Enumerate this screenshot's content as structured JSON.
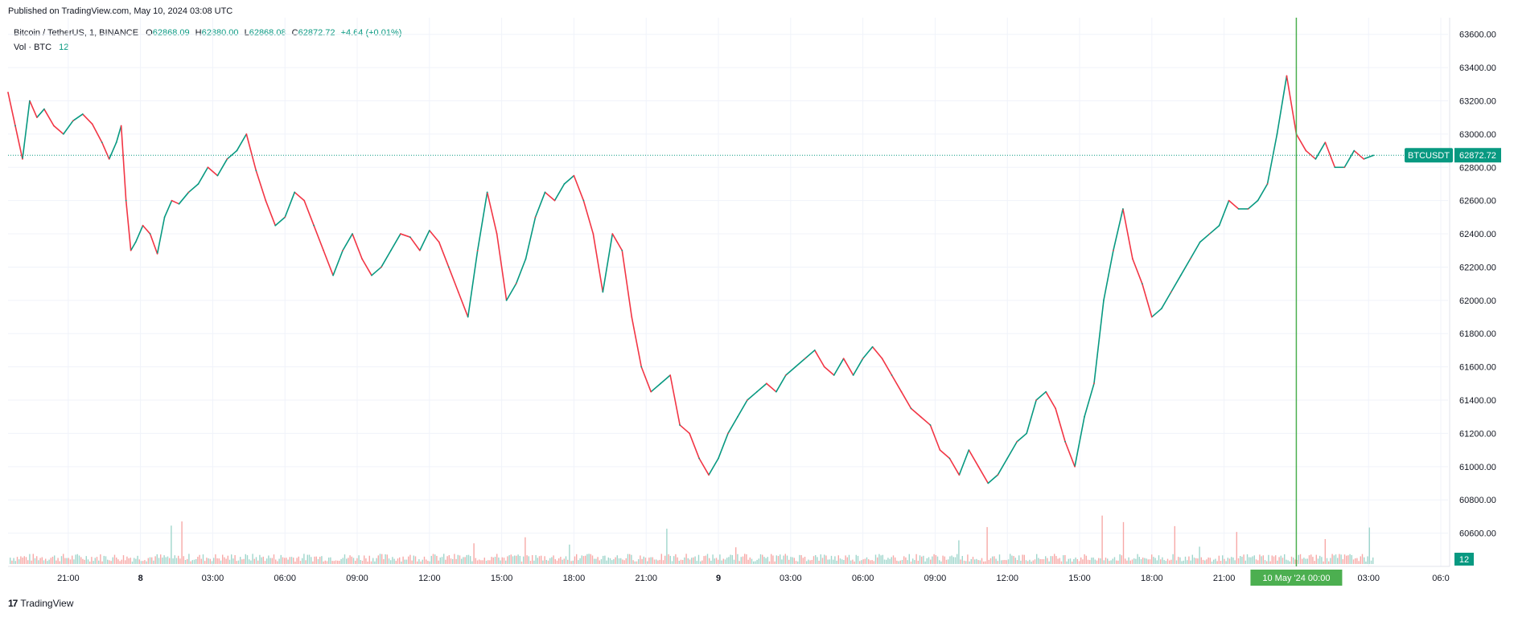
{
  "header": {
    "published": "Published on TradingView.com, May 10, 2024 03:08 UTC"
  },
  "legend": {
    "symbol": "Bitcoin / TetherUS, 1, BINANCE",
    "o_label": "O",
    "o_value": "62868.09",
    "h_label": "H",
    "h_value": "62880.00",
    "l_label": "L",
    "l_value": "62868.08",
    "c_label": "C",
    "c_value": "62872.72",
    "change": "+4.64 (+0.01%)"
  },
  "volume_legend": {
    "label": "Vol · BTC",
    "value": "12"
  },
  "footer": {
    "brand": "TradingView",
    "logo_text": "17"
  },
  "price_badge": {
    "ticker": "BTCUSDT",
    "price": "62872.72"
  },
  "volume_badge": "12",
  "crosshair_label": "10 May '24   00:00",
  "colors": {
    "up": "#089981",
    "down": "#f23645",
    "crosshair": "#4caf50",
    "badge": "#089981",
    "grid": "#f0f3fa"
  },
  "chart_data": {
    "type": "line",
    "title": "Bitcoin / TetherUS, 1, BINANCE",
    "ylim": [
      60400,
      63700
    ],
    "y_ticks": [
      63600,
      63400,
      63200,
      63000,
      62800,
      62600,
      62400,
      62200,
      62000,
      61800,
      61600,
      61400,
      61200,
      61000,
      60800,
      60600
    ],
    "y_tick_labels": [
      "63600.00",
      "63400.00",
      "63200.00",
      "63000.00",
      "62800.00",
      "62600.00",
      "62400.00",
      "62200.00",
      "62000.00",
      "61800.00",
      "61600.00",
      "61400.00",
      "61200.00",
      "61000.00",
      "60800.00",
      "60600.00"
    ],
    "x_tick_labels": [
      "21:00",
      "8",
      "03:00",
      "06:00",
      "09:00",
      "12:00",
      "15:00",
      "18:00",
      "21:00",
      "9",
      "03:00",
      "06:00",
      "09:00",
      "12:00",
      "15:00",
      "18:00",
      "21:00",
      "03:00",
      "06:0"
    ],
    "x_tick_hours": [
      -3,
      0,
      3,
      6,
      9,
      12,
      15,
      18,
      21,
      24,
      27,
      30,
      33,
      36,
      39,
      42,
      45,
      51,
      54
    ],
    "x_range_hours": [
      -5.5,
      54.3
    ],
    "crosshair_hour": 48,
    "last_price": 62872.72,
    "series": [
      {
        "x_hours": [
          -5.5,
          -5.2,
          -4.9,
          -4.6,
          -4.3,
          -4.0,
          -3.6,
          -3.2,
          -2.8,
          -2.4,
          -2.0,
          -1.6,
          -1.3,
          -1.0,
          -0.8,
          -0.6,
          -0.4,
          -0.2,
          0.1,
          0.4,
          0.7,
          1.0,
          1.3,
          1.6,
          2.0,
          2.4,
          2.8,
          3.2,
          3.6,
          4.0,
          4.4,
          4.8,
          5.2,
          5.6,
          6.0,
          6.4,
          6.8,
          7.2,
          7.6,
          8.0,
          8.4,
          8.8,
          9.2,
          9.6,
          10.0,
          10.4,
          10.8,
          11.2,
          11.6,
          12.0,
          12.4,
          12.8,
          13.2,
          13.6,
          14.0,
          14.4,
          14.8,
          15.2,
          15.6,
          16.0,
          16.4,
          16.8,
          17.2,
          17.6,
          18.0,
          18.4,
          18.8,
          19.2,
          19.6,
          20.0,
          20.4,
          20.8,
          21.2,
          21.6,
          22.0,
          22.4,
          22.8,
          23.2,
          23.6,
          24.0,
          24.4,
          24.8,
          25.2,
          25.6,
          26.0,
          26.4,
          26.8,
          27.2,
          27.6,
          28.0,
          28.4,
          28.8,
          29.2,
          29.6,
          30.0,
          30.4,
          30.8,
          31.2,
          31.6,
          32.0,
          32.4,
          32.8,
          33.2,
          33.6,
          34.0,
          34.4,
          34.8,
          35.2,
          35.6,
          36.0,
          36.4,
          36.8,
          37.2,
          37.6,
          38.0,
          38.4,
          38.8,
          39.2,
          39.6,
          40.0,
          40.4,
          40.8,
          41.2,
          41.6,
          42.0,
          42.4,
          42.8,
          43.2,
          43.6,
          44.0,
          44.4,
          44.8,
          45.2,
          45.6,
          46.0,
          46.4,
          46.8,
          47.2,
          47.6,
          48.0,
          48.4,
          48.8,
          49.2,
          49.6,
          50.0,
          50.4,
          50.8,
          51.2
        ],
        "values": [
          63250,
          63050,
          62850,
          63200,
          63100,
          63150,
          63050,
          63000,
          63080,
          63120,
          63060,
          62950,
          62850,
          62950,
          63050,
          62600,
          62300,
          62350,
          62450,
          62400,
          62280,
          62500,
          62600,
          62580,
          62650,
          62700,
          62800,
          62750,
          62850,
          62900,
          63000,
          62780,
          62600,
          62450,
          62500,
          62650,
          62600,
          62450,
          62300,
          62150,
          62300,
          62400,
          62250,
          62150,
          62200,
          62300,
          62400,
          62380,
          62300,
          62420,
          62350,
          62200,
          62050,
          61900,
          62300,
          62650,
          62400,
          62000,
          62100,
          62250,
          62500,
          62650,
          62600,
          62700,
          62750,
          62600,
          62400,
          62050,
          62400,
          62300,
          61900,
          61600,
          61450,
          61500,
          61550,
          61250,
          61200,
          61050,
          60950,
          61050,
          61200,
          61300,
          61400,
          61450,
          61500,
          61450,
          61550,
          61600,
          61650,
          61700,
          61600,
          61550,
          61650,
          61550,
          61650,
          61720,
          61650,
          61550,
          61450,
          61350,
          61300,
          61250,
          61100,
          61050,
          60950,
          61100,
          61000,
          60900,
          60950,
          61050,
          61150,
          61200,
          61400,
          61450,
          61350,
          61150,
          61000,
          61300,
          61500,
          62000,
          62300,
          62550,
          62250,
          62100,
          61900,
          61950,
          62050,
          62150,
          62250,
          62350,
          62400,
          62450,
          62600,
          62550,
          62550,
          62600,
          62700,
          63000,
          63350,
          63000,
          62900,
          62850,
          62950,
          62800,
          62800,
          62900,
          62850,
          62872
        ]
      }
    ]
  }
}
